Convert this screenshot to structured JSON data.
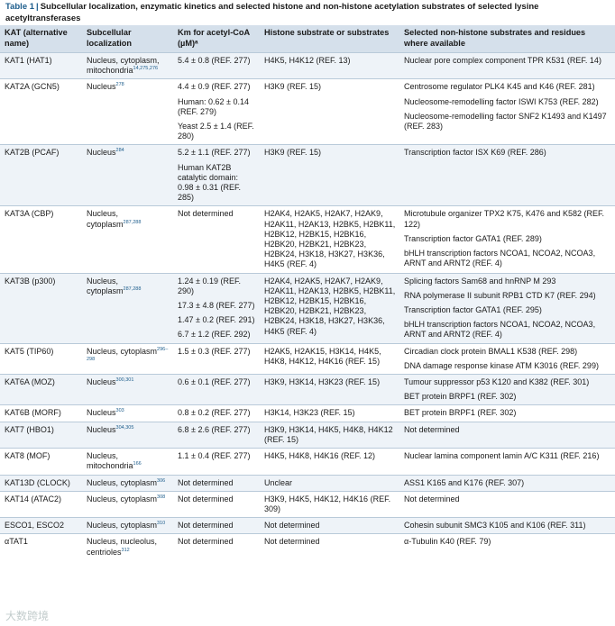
{
  "title": {
    "number": "Table 1",
    "text": "Subcellular localization, enzymatic kinetics and selected histone and non-histone acetylation substrates of selected lysine acetyltransferases"
  },
  "headers": [
    "KAT (alternative name)",
    "Subcellular localization",
    "Km for acetyl-CoA (µM)ᵃ",
    "Histone substrate or substrates",
    "Selected non-histone substrates and residues where available"
  ],
  "rows": [
    {
      "kat": "KAT1 (HAT1)",
      "loc": "Nucleus, cytoplasm, mitochondria",
      "loc_ref": "14,275,276",
      "km": [
        "5.4 ± 0.8 (REF. 277)"
      ],
      "histone": "H4K5, H4K12 (REF. 13)",
      "nonhistone": [
        "Nuclear pore complex component TPR K531 (REF. 14)"
      ]
    },
    {
      "kat": "KAT2A (GCN5)",
      "loc": "Nucleus",
      "loc_ref": "278",
      "km": [
        "4.4 ± 0.9 (REF. 277)",
        "Human: 0.62 ± 0.14 (REF. 279)",
        "Yeast 2.5 ± 1.4 (REF. 280)"
      ],
      "histone": "H3K9 (REF. 15)",
      "nonhistone": [
        "Centrosome regulator PLK4 K45 and K46 (REF. 281)",
        "Nucleosome-remodelling factor ISWI K753 (REF. 282)",
        "Nucleosome-remodelling factor SNF2 K1493 and K1497 (REF. 283)"
      ]
    },
    {
      "kat": "KAT2B (PCAF)",
      "loc": "Nucleus",
      "loc_ref": "284",
      "km": [
        "5.2 ± 1.1 (REF. 277)",
        "Human KAT2B catalytic domain: 0.98 ± 0.31 (REF. 285)"
      ],
      "histone": "H3K9 (REF. 15)",
      "nonhistone": [
        "Transcription factor ISX K69 (REF. 286)"
      ]
    },
    {
      "kat": "KAT3A (CBP)",
      "loc": "Nucleus, cytoplasm",
      "loc_ref": "287,288",
      "km": [
        "Not determined"
      ],
      "histone": "H2AK4, H2AK5, H2AK7, H2AK9, H2AK11, H2AK13, H2BK5, H2BK11, H2BK12, H2BK15, H2BK16, H2BK20, H2BK21, H2BK23, H2BK24, H3K18, H3K27, H3K36, H4K5 (REF. 4)",
      "nonhistone": [
        "Microtubule organizer TPX2 K75, K476 and K582 (REF. 122)",
        "Transcription factor GATA1 (REF. 289)",
        "bHLH transcription factors NCOA1, NCOA2, NCOA3, ARNT and ARNT2 (REF. 4)"
      ]
    },
    {
      "kat": "KAT3B (p300)",
      "loc": "Nucleus, cytoplasm",
      "loc_ref": "287,288",
      "km": [
        "1.24 ± 0.19 (REF. 290)",
        "17.3 ± 4.8 (REF. 277)",
        "1.47 ± 0.2 (REF. 291)",
        "6.7 ± 1.2 (REF. 292)"
      ],
      "histone": "H2AK4, H2AK5, H2AK7, H2AK9, H2AK11, H2AK13, H2BK5, H2BK11, H2BK12, H2BK15, H2BK16, H2BK20, H2BK21, H2BK23, H2BK24, H3K18, H3K27, H3K36, H4K5 (REF. 4)",
      "nonhistone": [
        "Splicing factors Sam68 and hnRNP M 293",
        "RNA polymerase II subunit RPB1 CTD K7 (REF. 294)",
        "Transcription factor GATA1 (REF. 295)",
        "bHLH transcription factors NCOA1, NCOA2, NCOA3, ARNT and ARNT2 (REF. 4)"
      ]
    },
    {
      "kat": "KAT5 (TIP60)",
      "loc": "Nucleus, cytoplasm",
      "loc_ref": "296–298",
      "km": [
        "1.5 ± 0.3 (REF. 277)"
      ],
      "histone": "H2AK5, H2AK15, H3K14, H4K5, H4K8, H4K12, H4K16 (REF. 15)",
      "nonhistone": [
        "Circadian clock protein BMAL1 K538 (REF. 298)",
        "DNA damage response kinase ATM K3016 (REF. 299)"
      ]
    },
    {
      "kat": "KAT6A (MOZ)",
      "loc": "Nucleus",
      "loc_ref": "300,301",
      "km": [
        "0.6 ± 0.1 (REF. 277)"
      ],
      "histone": "H3K9, H3K14, H3K23 (REF. 15)",
      "nonhistone": [
        "Tumour suppressor p53 K120 and K382 (REF. 301)",
        "BET protein BRPF1 (REF. 302)"
      ]
    },
    {
      "kat": "KAT6B (MORF)",
      "loc": "Nucleus",
      "loc_ref": "303",
      "km": [
        "0.8 ± 0.2 (REF. 277)"
      ],
      "histone": "H3K14, H3K23 (REF. 15)",
      "nonhistone": [
        "BET protein BRPF1 (REF. 302)"
      ]
    },
    {
      "kat": "KAT7 (HBO1)",
      "loc": "Nucleus",
      "loc_ref": "304,305",
      "km": [
        "6.8 ± 2.6 (REF. 277)"
      ],
      "histone": "H3K9, H3K14, H4K5, H4K8, H4K12 (REF. 15)",
      "nonhistone": [
        "Not determined"
      ]
    },
    {
      "kat": "KAT8 (MOF)",
      "loc": "Nucleus, mitochondria",
      "loc_ref": "166",
      "km": [
        "1.1 ± 0.4 (REF. 277)"
      ],
      "histone": "H4K5, H4K8, H4K16 (REF. 12)",
      "nonhistone": [
        "Nuclear lamina component lamin A/C K311 (REF. 216)"
      ]
    },
    {
      "kat": "KAT13D (CLOCK)",
      "loc": "Nucleus, cytoplasm",
      "loc_ref": "306",
      "km": [
        "Not determined"
      ],
      "histone": "Unclear",
      "nonhistone": [
        "ASS1 K165 and K176 (REF. 307)"
      ]
    },
    {
      "kat": "KAT14 (ATAC2)",
      "loc": "Nucleus, cytoplasm",
      "loc_ref": "308",
      "km": [
        "Not determined"
      ],
      "histone": "H3K9, H4K5, H4K12, H4K16 (REF. 309)",
      "nonhistone": [
        "Not determined"
      ]
    },
    {
      "kat": "ESCO1, ESCO2",
      "loc": "Nucleus, cytoplasm",
      "loc_ref": "310",
      "km": [
        "Not determined"
      ],
      "histone": "Not determined",
      "nonhistone": [
        "Cohesin subunit SMC3 K105 and K106 (REF. 311)"
      ]
    },
    {
      "kat": "αTAT1",
      "loc": "Nucleus, nucleolus, centrioles",
      "loc_ref": "312",
      "km": [
        "Not determined"
      ],
      "histone": "Not determined",
      "nonhistone": [
        "α-Tubulin K40 (REF. 79)"
      ]
    }
  ],
  "watermark": "大数跨境"
}
